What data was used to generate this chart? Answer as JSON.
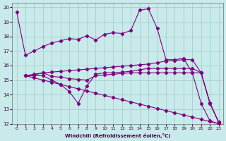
{
  "xlabel": "Windchill (Refroidissement éolien,°C)",
  "xlim": [
    -0.5,
    23.5
  ],
  "ylim": [
    12,
    20.3
  ],
  "xticks": [
    0,
    1,
    2,
    3,
    4,
    5,
    6,
    7,
    8,
    9,
    10,
    11,
    12,
    13,
    14,
    15,
    16,
    17,
    18,
    19,
    20,
    21,
    22,
    23
  ],
  "yticks": [
    12,
    13,
    14,
    15,
    16,
    17,
    18,
    19,
    20
  ],
  "bg_color": "#c8eaea",
  "grid_color": "#9fc8c8",
  "line_color": "#800080",
  "series": [
    {
      "x": [
        0,
        1,
        2,
        3,
        4,
        5,
        6,
        7,
        8,
        9,
        10,
        11,
        12,
        13,
        14,
        15,
        16,
        17,
        18,
        19,
        20,
        21,
        22,
        23
      ],
      "y": [
        19.7,
        16.7,
        17.0,
        17.3,
        17.55,
        17.7,
        17.85,
        17.8,
        18.05,
        17.75,
        18.15,
        18.25,
        18.2,
        18.4,
        19.8,
        19.9,
        18.55,
        16.4,
        16.4,
        16.5,
        15.5,
        13.4,
        12.2,
        12.0
      ]
    },
    {
      "x": [
        1,
        2,
        3,
        4,
        5,
        6,
        7,
        8,
        9,
        10,
        11,
        12,
        13,
        14,
        15,
        16,
        17,
        18,
        19,
        20,
        21,
        22,
        23
      ],
      "y": [
        15.3,
        15.4,
        15.5,
        15.55,
        15.6,
        15.65,
        15.7,
        15.75,
        15.8,
        15.85,
        15.9,
        15.95,
        16.0,
        16.05,
        16.1,
        16.2,
        16.3,
        16.35,
        16.4,
        16.4,
        15.5,
        13.4,
        12.1
      ]
    },
    {
      "x": [
        1,
        2,
        3,
        4,
        5,
        6,
        7,
        8,
        9,
        10,
        11,
        12,
        13,
        14,
        15,
        16,
        17,
        18,
        19,
        20,
        21,
        22,
        23
      ],
      "y": [
        15.3,
        15.35,
        15.5,
        15.25,
        15.2,
        15.1,
        15.05,
        15.0,
        15.3,
        15.35,
        15.4,
        15.45,
        15.5,
        15.5,
        15.5,
        15.5,
        15.5,
        15.5,
        15.5,
        15.5,
        15.5,
        13.45,
        12.1
      ]
    },
    {
      "x": [
        1,
        2,
        3,
        4,
        5,
        6,
        7,
        8,
        9,
        10,
        11,
        12,
        13,
        14,
        15,
        16,
        17,
        18,
        19,
        20,
        21,
        22,
        23
      ],
      "y": [
        15.3,
        15.3,
        15.3,
        15.0,
        14.7,
        14.2,
        13.4,
        14.6,
        15.4,
        15.5,
        15.5,
        15.55,
        15.6,
        15.7,
        15.8,
        15.8,
        15.8,
        15.8,
        15.8,
        15.8,
        15.5,
        13.45,
        12.1
      ]
    },
    {
      "x": [
        1,
        2,
        3,
        4,
        5,
        6,
        7,
        8,
        9,
        10,
        11,
        12,
        13,
        14,
        15,
        16,
        17,
        18,
        19,
        20,
        21,
        22,
        23
      ],
      "y": [
        15.3,
        15.15,
        15.0,
        14.85,
        14.7,
        14.55,
        14.4,
        14.25,
        14.1,
        13.95,
        13.8,
        13.65,
        13.5,
        13.35,
        13.2,
        13.05,
        12.9,
        12.75,
        12.6,
        12.45,
        12.3,
        12.15,
        12.0
      ]
    }
  ]
}
